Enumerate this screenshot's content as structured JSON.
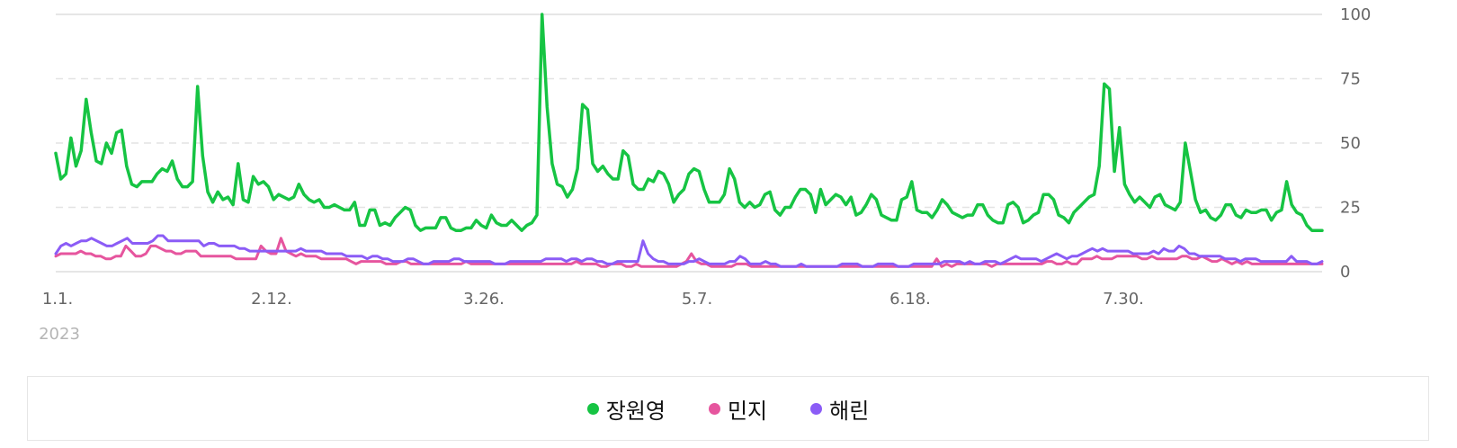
{
  "chart_data": {
    "type": "line",
    "y_axis": {
      "ticks": [
        0,
        25,
        50,
        75,
        100
      ],
      "ylim": [
        0,
        100
      ],
      "position": "right"
    },
    "x_axis": {
      "tick_labels": [
        "1.1.",
        "2.12.",
        "3.26.",
        "5.7.",
        "6.18.",
        "7.30."
      ],
      "year_label": "2023"
    },
    "grid": true,
    "legend_position": "bottom",
    "series": [
      {
        "name": "장원영",
        "color": "#16c443",
        "values": [
          46,
          36,
          38,
          52,
          41,
          47,
          67,
          54,
          43,
          42,
          50,
          46,
          54,
          55,
          41,
          34,
          33,
          35,
          35,
          35,
          38,
          40,
          39,
          43,
          36,
          33,
          33,
          35,
          72,
          45,
          31,
          27,
          31,
          28,
          29,
          26,
          42,
          28,
          27,
          37,
          34,
          35,
          33,
          28,
          30,
          29,
          28,
          29,
          34,
          30,
          28,
          27,
          28,
          25,
          25,
          26,
          25,
          24,
          24,
          27,
          18,
          18,
          24,
          24,
          18,
          19,
          18,
          21,
          23,
          25,
          24,
          18,
          16,
          17,
          17,
          17,
          21,
          21,
          17,
          16,
          16,
          17,
          17,
          20,
          18,
          17,
          22,
          19,
          18,
          18,
          20,
          18,
          16,
          18,
          19,
          22,
          100,
          64,
          42,
          34,
          33,
          29,
          32,
          40,
          65,
          63,
          42,
          39,
          41,
          38,
          36,
          36,
          47,
          45,
          34,
          32,
          32,
          36,
          35,
          39,
          38,
          34,
          27,
          30,
          32,
          38,
          40,
          39,
          32,
          27,
          27,
          27,
          30,
          40,
          36,
          27,
          25,
          27,
          25,
          26,
          30,
          31,
          24,
          22,
          25,
          25,
          29,
          32,
          32,
          30,
          23,
          32,
          26,
          28,
          30,
          29,
          26,
          29,
          22,
          23,
          26,
          30,
          28,
          22,
          21,
          20,
          20,
          28,
          29,
          35,
          24,
          23,
          23,
          21,
          24,
          28,
          26,
          23,
          22,
          21,
          22,
          22,
          26,
          26,
          22,
          20,
          19,
          19,
          26,
          27,
          25,
          19,
          20,
          22,
          23,
          30,
          30,
          28,
          22,
          21,
          19,
          23,
          25,
          27,
          29,
          30,
          41,
          73,
          71,
          39,
          56,
          34,
          30,
          27,
          29,
          27,
          25,
          29,
          30,
          26,
          25,
          24,
          27,
          50,
          39,
          28,
          23,
          24,
          21,
          20,
          22,
          26,
          26,
          22,
          21,
          24,
          23,
          23,
          24,
          24,
          20,
          23,
          24,
          35,
          26,
          23,
          22,
          18,
          16,
          16,
          16
        ]
      },
      {
        "name": "민지",
        "color": "#e6559e",
        "values": [
          6,
          7,
          7,
          7,
          7,
          8,
          7,
          7,
          6,
          6,
          5,
          5,
          6,
          6,
          10,
          8,
          6,
          6,
          7,
          10,
          10,
          9,
          8,
          8,
          7,
          7,
          8,
          8,
          8,
          6,
          6,
          6,
          6,
          6,
          6,
          6,
          5,
          5,
          5,
          5,
          5,
          10,
          8,
          7,
          7,
          13,
          8,
          7,
          6,
          7,
          6,
          6,
          6,
          5,
          5,
          5,
          5,
          5,
          5,
          4,
          3,
          4,
          4,
          4,
          4,
          4,
          3,
          3,
          3,
          4,
          4,
          3,
          3,
          3,
          3,
          3,
          3,
          3,
          3,
          3,
          3,
          3,
          4,
          3,
          3,
          3,
          3,
          3,
          3,
          3,
          3,
          3,
          3,
          3,
          3,
          3,
          3,
          3,
          3,
          3,
          3,
          3,
          3,
          3,
          4,
          3,
          3,
          3,
          3,
          2,
          2,
          3,
          3,
          3,
          2,
          2,
          3,
          2,
          2,
          2,
          2,
          2,
          2,
          2,
          2,
          3,
          4,
          7,
          4,
          3,
          3,
          2,
          2,
          2,
          2,
          2,
          3,
          3,
          3,
          2,
          2,
          2,
          2,
          2,
          2,
          2,
          2,
          2,
          2,
          2,
          2,
          2,
          2,
          2,
          2,
          2,
          2,
          2,
          2,
          2,
          2,
          2,
          2,
          2,
          2,
          2,
          2,
          2,
          2,
          2,
          2,
          2,
          2,
          2,
          2,
          2,
          5,
          2,
          3,
          2,
          3,
          3,
          3,
          3,
          3,
          3,
          3,
          2,
          3,
          3,
          3,
          3,
          3,
          3,
          3,
          3,
          3,
          3,
          4,
          4,
          3,
          3,
          4,
          3,
          3,
          5,
          5,
          5,
          6,
          5,
          5,
          5,
          6,
          6,
          6,
          6,
          6,
          5,
          5,
          6,
          5,
          5,
          5,
          5,
          5,
          6,
          6,
          5,
          5,
          6,
          5,
          4,
          4,
          5,
          4,
          3,
          4,
          3,
          4,
          3,
          3,
          3,
          3,
          3,
          3,
          3,
          3,
          3,
          3,
          3,
          3,
          3,
          3,
          3
        ]
      },
      {
        "name": "해린",
        "color": "#8b5cf6",
        "values": [
          7,
          10,
          11,
          10,
          11,
          12,
          12,
          13,
          12,
          11,
          10,
          10,
          11,
          12,
          13,
          11,
          11,
          11,
          11,
          12,
          14,
          14,
          12,
          12,
          12,
          12,
          12,
          12,
          12,
          10,
          11,
          11,
          10,
          10,
          10,
          10,
          9,
          9,
          8,
          8,
          8,
          8,
          8,
          8,
          8,
          8,
          8,
          8,
          9,
          8,
          8,
          8,
          8,
          7,
          7,
          7,
          7,
          6,
          6,
          6,
          6,
          5,
          6,
          6,
          5,
          5,
          4,
          4,
          4,
          5,
          5,
          4,
          3,
          3,
          4,
          4,
          4,
          4,
          5,
          5,
          4,
          4,
          4,
          4,
          4,
          4,
          3,
          3,
          3,
          4,
          4,
          4,
          4,
          4,
          4,
          4,
          5,
          5,
          5,
          5,
          4,
          5,
          5,
          4,
          5,
          5,
          4,
          4,
          3,
          3,
          4,
          4,
          4,
          4,
          4,
          12,
          7,
          5,
          4,
          4,
          3,
          3,
          3,
          3,
          4,
          4,
          5,
          4,
          3,
          3,
          3,
          3,
          4,
          4,
          6,
          5,
          3,
          3,
          3,
          4,
          3,
          3,
          2,
          2,
          2,
          2,
          3,
          2,
          2,
          2,
          2,
          2,
          2,
          2,
          3,
          3,
          3,
          3,
          2,
          2,
          2,
          3,
          3,
          3,
          3,
          2,
          2,
          2,
          3,
          3,
          3,
          3,
          3,
          3,
          4,
          4,
          4,
          4,
          3,
          4,
          3,
          3,
          4,
          4,
          4,
          3,
          4,
          5,
          6,
          5,
          5,
          5,
          5,
          4,
          5,
          6,
          7,
          6,
          5,
          6,
          6,
          7,
          8,
          9,
          8,
          9,
          8,
          8,
          8,
          8,
          8,
          7,
          7,
          7,
          7,
          8,
          7,
          9,
          8,
          8,
          10,
          9,
          7,
          7,
          6,
          6,
          6,
          6,
          6,
          5,
          5,
          5,
          4,
          5,
          5,
          5,
          4,
          4,
          4,
          4,
          4,
          4,
          6,
          4,
          4,
          4,
          3,
          3,
          4
        ]
      }
    ]
  }
}
